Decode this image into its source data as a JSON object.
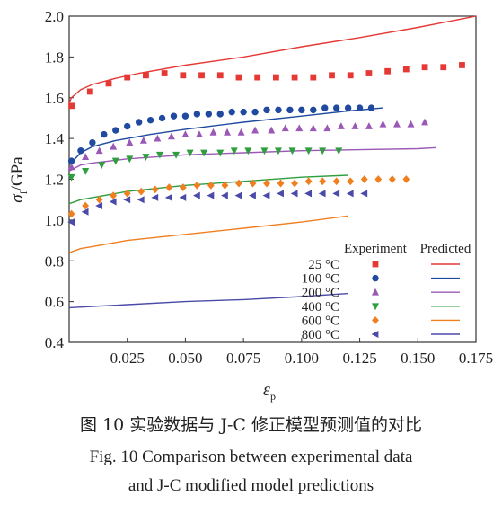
{
  "chart_data": {
    "type": "scatter",
    "ylabel": {
      "symbol": "σ",
      "sub": "f",
      "unit": "/GPa"
    },
    "xlabel": {
      "symbol": "ε",
      "sub": "p"
    },
    "xlim": [
      0,
      0.175
    ],
    "ylim": [
      0.4,
      2.0
    ],
    "xticks": [
      "0.025",
      "0.050",
      "0.075",
      "0.100",
      "0.125",
      "0.150",
      "0.175"
    ],
    "yticks": [
      "0.4",
      "0.6",
      "0.8",
      "1.0",
      "1.2",
      "1.4",
      "1.6",
      "1.8",
      "2.0"
    ],
    "legend": {
      "experiment_header": "Experiment",
      "predicted_header": "Predicted",
      "placement": "bottom-right"
    },
    "series": [
      {
        "name": "25 °C",
        "color": "#e53935",
        "marker": "square",
        "experiment": [
          [
            0.001,
            1.56
          ],
          [
            0.009,
            1.63
          ],
          [
            0.017,
            1.67
          ],
          [
            0.025,
            1.7
          ],
          [
            0.033,
            1.71
          ],
          [
            0.041,
            1.72
          ],
          [
            0.049,
            1.71
          ],
          [
            0.057,
            1.71
          ],
          [
            0.065,
            1.71
          ],
          [
            0.073,
            1.7
          ],
          [
            0.081,
            1.7
          ],
          [
            0.089,
            1.7
          ],
          [
            0.097,
            1.7
          ],
          [
            0.105,
            1.7
          ],
          [
            0.113,
            1.71
          ],
          [
            0.121,
            1.71
          ],
          [
            0.129,
            1.72
          ],
          [
            0.137,
            1.73
          ],
          [
            0.145,
            1.74
          ],
          [
            0.153,
            1.75
          ],
          [
            0.161,
            1.75
          ],
          [
            0.169,
            1.76
          ]
        ],
        "predicted": [
          [
            0.0,
            1.575
          ],
          [
            0.001,
            1.6
          ],
          [
            0.005,
            1.64
          ],
          [
            0.01,
            1.665
          ],
          [
            0.02,
            1.695
          ],
          [
            0.03,
            1.72
          ],
          [
            0.05,
            1.76
          ],
          [
            0.075,
            1.8
          ],
          [
            0.1,
            1.85
          ],
          [
            0.125,
            1.895
          ],
          [
            0.15,
            1.945
          ],
          [
            0.175,
            2.0
          ]
        ]
      },
      {
        "name": "100 °C",
        "color": "#1f4aa0",
        "marker": "circle",
        "experiment": [
          [
            0.001,
            1.29
          ],
          [
            0.005,
            1.34
          ],
          [
            0.01,
            1.38
          ],
          [
            0.015,
            1.42
          ],
          [
            0.02,
            1.44
          ],
          [
            0.025,
            1.46
          ],
          [
            0.03,
            1.48
          ],
          [
            0.035,
            1.49
          ],
          [
            0.04,
            1.5
          ],
          [
            0.045,
            1.51
          ],
          [
            0.05,
            1.51
          ],
          [
            0.055,
            1.52
          ],
          [
            0.06,
            1.52
          ],
          [
            0.065,
            1.52
          ],
          [
            0.07,
            1.53
          ],
          [
            0.075,
            1.53
          ],
          [
            0.08,
            1.53
          ],
          [
            0.085,
            1.54
          ],
          [
            0.09,
            1.54
          ],
          [
            0.095,
            1.54
          ],
          [
            0.1,
            1.54
          ],
          [
            0.105,
            1.54
          ],
          [
            0.11,
            1.55
          ],
          [
            0.115,
            1.55
          ],
          [
            0.12,
            1.55
          ],
          [
            0.125,
            1.55
          ],
          [
            0.13,
            1.55
          ]
        ],
        "predicted": [
          [
            0.0,
            1.27
          ],
          [
            0.005,
            1.33
          ],
          [
            0.01,
            1.36
          ],
          [
            0.02,
            1.39
          ],
          [
            0.035,
            1.42
          ],
          [
            0.05,
            1.445
          ],
          [
            0.075,
            1.48
          ],
          [
            0.1,
            1.51
          ],
          [
            0.12,
            1.535
          ],
          [
            0.135,
            1.55
          ]
        ]
      },
      {
        "name": "200 °C",
        "color": "#9b59b6",
        "marker": "triangle-up",
        "experiment": [
          [
            0.001,
            1.26
          ],
          [
            0.007,
            1.31
          ],
          [
            0.013,
            1.34
          ],
          [
            0.019,
            1.36
          ],
          [
            0.026,
            1.38
          ],
          [
            0.032,
            1.39
          ],
          [
            0.038,
            1.4
          ],
          [
            0.044,
            1.41
          ],
          [
            0.05,
            1.42
          ],
          [
            0.056,
            1.42
          ],
          [
            0.062,
            1.43
          ],
          [
            0.068,
            1.43
          ],
          [
            0.074,
            1.43
          ],
          [
            0.08,
            1.44
          ],
          [
            0.087,
            1.44
          ],
          [
            0.093,
            1.45
          ],
          [
            0.099,
            1.45
          ],
          [
            0.105,
            1.45
          ],
          [
            0.111,
            1.45
          ],
          [
            0.117,
            1.46
          ],
          [
            0.123,
            1.46
          ],
          [
            0.129,
            1.46
          ],
          [
            0.135,
            1.47
          ],
          [
            0.141,
            1.47
          ],
          [
            0.147,
            1.47
          ],
          [
            0.153,
            1.48
          ]
        ],
        "predicted": [
          [
            0.0,
            1.24
          ],
          [
            0.005,
            1.27
          ],
          [
            0.01,
            1.28
          ],
          [
            0.025,
            1.3
          ],
          [
            0.05,
            1.32
          ],
          [
            0.075,
            1.33
          ],
          [
            0.1,
            1.34
          ],
          [
            0.125,
            1.345
          ],
          [
            0.15,
            1.35
          ],
          [
            0.158,
            1.355
          ]
        ]
      },
      {
        "name": "400 °C",
        "color": "#2e9e3e",
        "marker": "triangle-down",
        "experiment": [
          [
            0.001,
            1.21
          ],
          [
            0.007,
            1.24
          ],
          [
            0.014,
            1.27
          ],
          [
            0.02,
            1.29
          ],
          [
            0.026,
            1.3
          ],
          [
            0.033,
            1.31
          ],
          [
            0.039,
            1.32
          ],
          [
            0.046,
            1.32
          ],
          [
            0.052,
            1.33
          ],
          [
            0.058,
            1.33
          ],
          [
            0.065,
            1.33
          ],
          [
            0.071,
            1.34
          ],
          [
            0.077,
            1.34
          ],
          [
            0.084,
            1.34
          ],
          [
            0.09,
            1.34
          ],
          [
            0.096,
            1.34
          ],
          [
            0.103,
            1.34
          ],
          [
            0.109,
            1.34
          ],
          [
            0.116,
            1.34
          ]
        ],
        "predicted": [
          [
            0.0,
            1.08
          ],
          [
            0.005,
            1.1
          ],
          [
            0.01,
            1.11
          ],
          [
            0.025,
            1.14
          ],
          [
            0.05,
            1.17
          ],
          [
            0.075,
            1.19
          ],
          [
            0.1,
            1.21
          ],
          [
            0.12,
            1.22
          ]
        ]
      },
      {
        "name": "600 °C",
        "color": "#f07f1f",
        "marker": "diamond",
        "experiment": [
          [
            0.001,
            1.03
          ],
          [
            0.007,
            1.07
          ],
          [
            0.013,
            1.1
          ],
          [
            0.019,
            1.12
          ],
          [
            0.025,
            1.13
          ],
          [
            0.031,
            1.14
          ],
          [
            0.037,
            1.15
          ],
          [
            0.043,
            1.16
          ],
          [
            0.049,
            1.16
          ],
          [
            0.055,
            1.17
          ],
          [
            0.061,
            1.17
          ],
          [
            0.067,
            1.17
          ],
          [
            0.073,
            1.18
          ],
          [
            0.079,
            1.18
          ],
          [
            0.085,
            1.18
          ],
          [
            0.091,
            1.18
          ],
          [
            0.097,
            1.18
          ],
          [
            0.103,
            1.19
          ],
          [
            0.109,
            1.19
          ],
          [
            0.115,
            1.19
          ],
          [
            0.121,
            1.19
          ],
          [
            0.127,
            1.2
          ],
          [
            0.133,
            1.2
          ],
          [
            0.139,
            1.2
          ],
          [
            0.145,
            1.2
          ]
        ],
        "predicted": [
          [
            0.0,
            0.84
          ],
          [
            0.005,
            0.86
          ],
          [
            0.01,
            0.87
          ],
          [
            0.025,
            0.9
          ],
          [
            0.05,
            0.93
          ],
          [
            0.075,
            0.96
          ],
          [
            0.1,
            0.99
          ],
          [
            0.12,
            1.02
          ]
        ]
      },
      {
        "name": "800 °C",
        "color": "#4a4aa8",
        "marker": "triangle-left",
        "experiment": [
          [
            0.001,
            0.99
          ],
          [
            0.007,
            1.04
          ],
          [
            0.013,
            1.07
          ],
          [
            0.019,
            1.09
          ],
          [
            0.025,
            1.1
          ],
          [
            0.031,
            1.1
          ],
          [
            0.037,
            1.11
          ],
          [
            0.043,
            1.11
          ],
          [
            0.049,
            1.11
          ],
          [
            0.055,
            1.12
          ],
          [
            0.061,
            1.12
          ],
          [
            0.067,
            1.12
          ],
          [
            0.073,
            1.12
          ],
          [
            0.079,
            1.12
          ],
          [
            0.085,
            1.12
          ],
          [
            0.091,
            1.13
          ],
          [
            0.097,
            1.13
          ],
          [
            0.103,
            1.13
          ],
          [
            0.109,
            1.13
          ],
          [
            0.115,
            1.13
          ],
          [
            0.121,
            1.13
          ],
          [
            0.127,
            1.13
          ]
        ],
        "predicted": [
          [
            0.0,
            0.57
          ],
          [
            0.025,
            0.585
          ],
          [
            0.05,
            0.6
          ],
          [
            0.075,
            0.61
          ],
          [
            0.1,
            0.625
          ],
          [
            0.12,
            0.64
          ]
        ]
      }
    ],
    "predicted_extra_note": ""
  },
  "captions": {
    "cn": "图 10   实验数据与 J-C 修正模型预测值的对比",
    "en_line1": "Fig. 10    Comparison between experimental data",
    "en_line2": "and J-C modified model predictions"
  }
}
